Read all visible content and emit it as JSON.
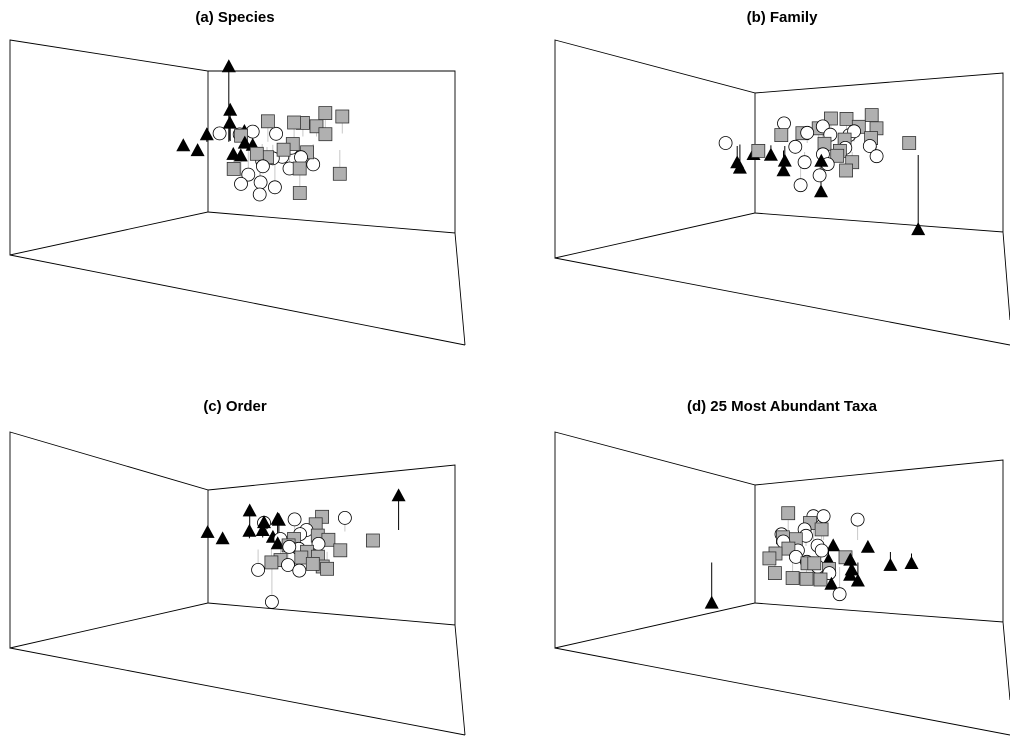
{
  "colors": {
    "circle_fill": "#ffffff",
    "square_fill": "#b0b0b0",
    "triangle_fill": "#000000",
    "outline": "#000000",
    "drop_line_light": "#c8c8c8",
    "drop_line_dark": "#000000"
  },
  "chart_data": [
    {
      "type": "scatter",
      "projection": "3d",
      "title": "(a) Species",
      "grid": false,
      "legend": false,
      "series": [
        {
          "marker": "circle",
          "points": [
            [
              -1.2,
              0.65,
              0.2
            ],
            [
              -0.6,
              0.7,
              0.15
            ],
            [
              -0.25,
              0.55,
              0.3
            ],
            [
              0.0,
              0.4,
              -0.5
            ],
            [
              0.6,
              0.45,
              -0.4
            ],
            [
              0.9,
              0.6,
              -0.2
            ],
            [
              1.5,
              0.4,
              -0.6
            ],
            [
              -0.5,
              -0.05,
              -0.7
            ],
            [
              -0.05,
              0.05,
              -0.5
            ],
            [
              0.3,
              0.35,
              -0.4
            ],
            [
              -0.2,
              -0.35,
              -0.8
            ],
            [
              0.2,
              -0.45,
              -0.9
            ],
            [
              -0.3,
              -0.7,
              -1.0
            ],
            [
              -0.8,
              -0.45,
              -0.8
            ],
            [
              0.7,
              -0.1,
              -0.5
            ],
            [
              1.1,
              0.2,
              -0.3
            ],
            [
              0.5,
              0.85,
              0.1
            ]
          ]
        },
        {
          "marker": "square",
          "points": [
            [
              0.2,
              0.55,
              0.6
            ],
            [
              -0.6,
              0.5,
              0.2
            ],
            [
              1.0,
              0.7,
              0.5
            ],
            [
              1.7,
              0.9,
              0.3
            ],
            [
              1.3,
              0.9,
              0.4
            ],
            [
              1.9,
              0.6,
              0.2
            ],
            [
              2.5,
              1.1,
              0.5
            ],
            [
              2.0,
              1.1,
              0.6
            ],
            [
              0.9,
              0.4,
              0.0
            ],
            [
              0.6,
              0.25,
              -0.1
            ],
            [
              1.3,
              0.3,
              -0.2
            ],
            [
              0.1,
              0.2,
              -0.3
            ],
            [
              -0.2,
              0.2,
              -0.2
            ],
            [
              1.0,
              -0.1,
              -0.5
            ],
            [
              2.2,
              0.0,
              -0.7
            ],
            [
              -0.9,
              0.1,
              -0.6
            ],
            [
              0.9,
              -0.6,
              -1.0
            ]
          ]
        },
        {
          "marker": "triangle",
          "points": [
            [
              -0.4,
              1.0,
              0.1
            ],
            [
              -0.9,
              0.65,
              0.5
            ],
            [
              -0.9,
              0.6,
              0.9
            ],
            [
              -0.95,
              0.55,
              2.2
            ],
            [
              -2.3,
              0.5,
              -0.1
            ],
            [
              -1.6,
              0.55,
              0.2
            ],
            [
              -1.9,
              0.4,
              -0.2
            ],
            [
              -0.5,
              0.45,
              0.0
            ],
            [
              -0.3,
              0.3,
              0.0
            ],
            [
              -0.9,
              0.15,
              -0.2
            ],
            [
              -0.7,
              0.05,
              -0.2
            ]
          ]
        }
      ]
    },
    {
      "type": "scatter",
      "projection": "3d",
      "title": "(b) Family",
      "grid": false,
      "legend": false,
      "series": [
        {
          "marker": "circle",
          "points": [
            [
              -2.3,
              0.6,
              0.0
            ],
            [
              -0.5,
              1.0,
              0.4
            ],
            [
              0.1,
              0.6,
              0.3
            ],
            [
              0.6,
              0.8,
              0.4
            ],
            [
              1.5,
              0.7,
              0.3
            ],
            [
              1.2,
              0.5,
              -0.1
            ],
            [
              0.5,
              0.3,
              -0.2
            ],
            [
              1.9,
              0.4,
              0.0
            ],
            [
              2.1,
              0.4,
              -0.3
            ],
            [
              -0.3,
              0.35,
              0.0
            ],
            [
              0.6,
              0.1,
              -0.4
            ],
            [
              0.3,
              -0.2,
              -0.6
            ],
            [
              -0.3,
              -0.4,
              -0.8
            ],
            [
              -0.1,
              0.0,
              -0.3
            ],
            [
              0.8,
              0.7,
              0.2
            ],
            [
              1.4,
              0.9,
              0.1
            ]
          ]
        },
        {
          "marker": "square",
          "points": [
            [
              -0.6,
              0.9,
              0.1
            ],
            [
              0.5,
              0.9,
              0.3
            ],
            [
              0.9,
              1.1,
              0.5
            ],
            [
              1.4,
              1.3,
              0.4
            ],
            [
              1.7,
              1.0,
              0.3
            ],
            [
              2.1,
              1.1,
              0.6
            ],
            [
              2.2,
              0.9,
              0.3
            ],
            [
              2.0,
              0.7,
              0.1
            ],
            [
              1.2,
              0.6,
              0.1
            ],
            [
              0.6,
              0.55,
              0.0
            ],
            [
              0.0,
              0.8,
              0.2
            ],
            [
              -1.4,
              0.3,
              -0.1
            ],
            [
              1.0,
              0.3,
              -0.1
            ],
            [
              1.3,
              0.0,
              -0.3
            ],
            [
              1.1,
              -0.1,
              -0.5
            ],
            [
              3.1,
              0.6,
              0.0
            ],
            [
              0.9,
              0.2,
              -0.2
            ]
          ]
        },
        {
          "marker": "triangle",
          "points": [
            [
              -1.9,
              0.5,
              -0.7
            ],
            [
              -2.0,
              0.4,
              -0.5
            ],
            [
              -1.5,
              0.5,
              -0.3
            ],
            [
              -1.0,
              0.45,
              -0.3
            ],
            [
              -0.6,
              0.4,
              -0.45
            ],
            [
              -0.7,
              0.1,
              -0.6
            ],
            [
              0.4,
              0.05,
              -0.3
            ],
            [
              0.3,
              -0.4,
              -1.0
            ],
            [
              3.2,
              -0.2,
              -2.2
            ]
          ]
        }
      ]
    },
    {
      "type": "scatter",
      "projection": "3d",
      "title": "(c) Order",
      "grid": false,
      "legend": false,
      "series": [
        {
          "marker": "circle",
          "points": [
            [
              -0.6,
              0.8,
              0.3
            ],
            [
              0.3,
              0.8,
              0.4
            ],
            [
              0.9,
              0.8,
              0.2
            ],
            [
              1.8,
              0.9,
              0.4
            ],
            [
              0.6,
              0.55,
              0.2
            ],
            [
              -0.2,
              0.4,
              0.0
            ],
            [
              0.3,
              0.2,
              -0.2
            ],
            [
              0.6,
              0.0,
              -0.3
            ],
            [
              -0.1,
              -0.2,
              -0.5
            ],
            [
              0.2,
              -0.35,
              -0.6
            ],
            [
              -1.0,
              -0.3,
              -0.6
            ],
            [
              0.9,
              0.3,
              -0.1
            ],
            [
              -0.8,
              -1.3,
              -1.1
            ],
            [
              0.4,
              0.5,
              0.1
            ],
            [
              0.0,
              0.1,
              -0.1
            ]
          ]
        },
        {
          "marker": "square",
          "points": [
            [
              0.9,
              0.7,
              0.3
            ],
            [
              1.1,
              0.75,
              0.5
            ],
            [
              0.9,
              0.4,
              0.1
            ],
            [
              1.2,
              0.35,
              0.0
            ],
            [
              0.2,
              0.4,
              0.0
            ],
            [
              0.0,
              0.2,
              -0.1
            ],
            [
              0.5,
              0.0,
              -0.2
            ],
            [
              0.8,
              -0.1,
              -0.3
            ],
            [
              0.3,
              -0.15,
              -0.3
            ],
            [
              -0.3,
              -0.1,
              -0.4
            ],
            [
              1.5,
              0.1,
              -0.2
            ],
            [
              0.9,
              -0.3,
              -0.5
            ],
            [
              2.5,
              0.3,
              0.0
            ],
            [
              -0.6,
              -0.25,
              -0.4
            ],
            [
              1.0,
              -0.45,
              -0.5
            ],
            [
              0.6,
              -0.35,
              -0.4
            ]
          ]
        },
        {
          "marker": "triangle",
          "points": [
            [
              -1.0,
              0.9,
              0.6
            ],
            [
              -0.6,
              0.8,
              0.3
            ],
            [
              -0.2,
              0.8,
              0.4
            ],
            [
              -0.15,
              0.85,
              0.35
            ],
            [
              -0.7,
              0.5,
              0.2
            ],
            [
              -0.4,
              0.5,
              0.0
            ],
            [
              -1.1,
              0.45,
              0.2
            ],
            [
              -0.3,
              0.3,
              -0.1
            ],
            [
              -2.3,
              0.6,
              0.1
            ],
            [
              -1.9,
              0.4,
              0.0
            ],
            [
              3.4,
              1.0,
              1.0
            ]
          ]
        }
      ]
    },
    {
      "type": "scatter",
      "projection": "3d",
      "title": "(d) 25 Most Abundant Taxa",
      "grid": false,
      "legend": false,
      "series": [
        {
          "marker": "circle",
          "points": [
            [
              0.6,
              1.0,
              0.7
            ],
            [
              0.9,
              1.0,
              0.7
            ],
            [
              1.9,
              1.0,
              0.6
            ],
            [
              -0.4,
              0.7,
              0.3
            ],
            [
              0.3,
              0.6,
              0.3
            ],
            [
              0.6,
              0.4,
              0.1
            ],
            [
              0.0,
              0.3,
              0.0
            ],
            [
              -0.1,
              0.1,
              -0.1
            ],
            [
              0.2,
              0.0,
              -0.2
            ],
            [
              0.5,
              -0.1,
              -0.3
            ],
            [
              0.8,
              -0.3,
              -0.4
            ],
            [
              1.0,
              -0.8,
              -0.8
            ],
            [
              -0.4,
              0.45,
              0.2
            ],
            [
              0.3,
              0.8,
              0.4
            ],
            [
              0.7,
              0.3,
              0.0
            ]
          ]
        },
        {
          "marker": "square",
          "points": [
            [
              -0.1,
              1.2,
              0.7
            ],
            [
              0.5,
              1.0,
              0.5
            ],
            [
              0.8,
              0.8,
              0.4
            ],
            [
              -0.4,
              0.5,
              0.3
            ],
            [
              -0.3,
              0.2,
              0.1
            ],
            [
              -0.9,
              0.0,
              -0.1
            ],
            [
              -0.7,
              0.1,
              0.0
            ],
            [
              0.2,
              -0.1,
              -0.2
            ],
            [
              0.4,
              -0.1,
              -0.2
            ],
            [
              0.8,
              -0.25,
              -0.3
            ],
            [
              -0.3,
              -0.4,
              -0.5
            ],
            [
              0.1,
              -0.45,
              -0.5
            ],
            [
              0.5,
              -0.5,
              -0.5
            ],
            [
              -0.8,
              -0.3,
              -0.4
            ],
            [
              1.4,
              0.3,
              -0.2
            ],
            [
              0.0,
              0.6,
              0.2
            ]
          ]
        },
        {
          "marker": "triangle",
          "points": [
            [
              -2.7,
              -0.5,
              -1.2
            ],
            [
              1.1,
              0.6,
              0.0
            ],
            [
              2.1,
              0.5,
              0.0
            ],
            [
              0.9,
              0.3,
              -0.3
            ],
            [
              1.5,
              0.1,
              -0.2
            ],
            [
              1.5,
              -0.1,
              -0.4
            ],
            [
              1.4,
              -0.35,
              -0.45
            ],
            [
              1.6,
              -0.5,
              -0.55
            ],
            [
              2.7,
              0.2,
              -0.4
            ],
            [
              3.3,
              0.1,
              -0.3
            ],
            [
              0.8,
              -0.6,
              -0.6
            ]
          ]
        }
      ]
    }
  ]
}
